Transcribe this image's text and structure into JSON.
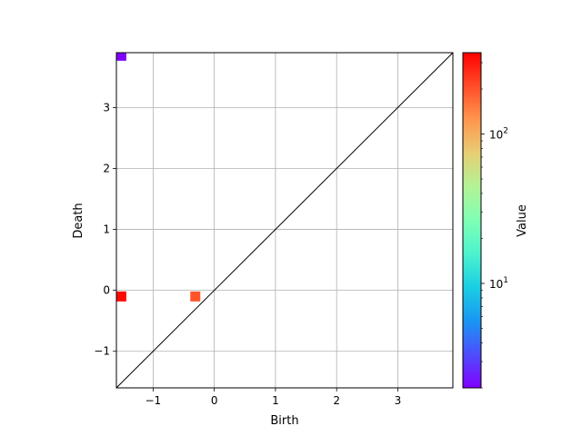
{
  "chart_data": {
    "type": "scatter",
    "title": "",
    "xlabel": "Birth",
    "ylabel": "Death",
    "xlim": [
      -1.6,
      3.9
    ],
    "ylim": [
      -1.6,
      3.9
    ],
    "xticks": [
      -1,
      0,
      1,
      2,
      3
    ],
    "yticks": [
      -1,
      0,
      1,
      2,
      3
    ],
    "xtick_labels": [
      "−1",
      "0",
      "1",
      "2",
      "3"
    ],
    "ytick_labels": [
      "−1",
      "0",
      "1",
      "2",
      "3"
    ],
    "grid": true,
    "diagonal": true,
    "marker": "square",
    "points": [
      {
        "x": -1.52,
        "y": 3.85,
        "value": 2
      },
      {
        "x": -1.52,
        "y": -0.1,
        "value": 330
      },
      {
        "x": -0.31,
        "y": -0.1,
        "value": 200
      }
    ],
    "colorbar": {
      "label": "Value",
      "scale": "log",
      "range": [
        2,
        350
      ],
      "ticks": [
        {
          "value": 10,
          "base": "10",
          "exp": "1"
        },
        {
          "value": 100,
          "base": "10",
          "exp": "2"
        }
      ],
      "colormap": "rainbow"
    }
  }
}
